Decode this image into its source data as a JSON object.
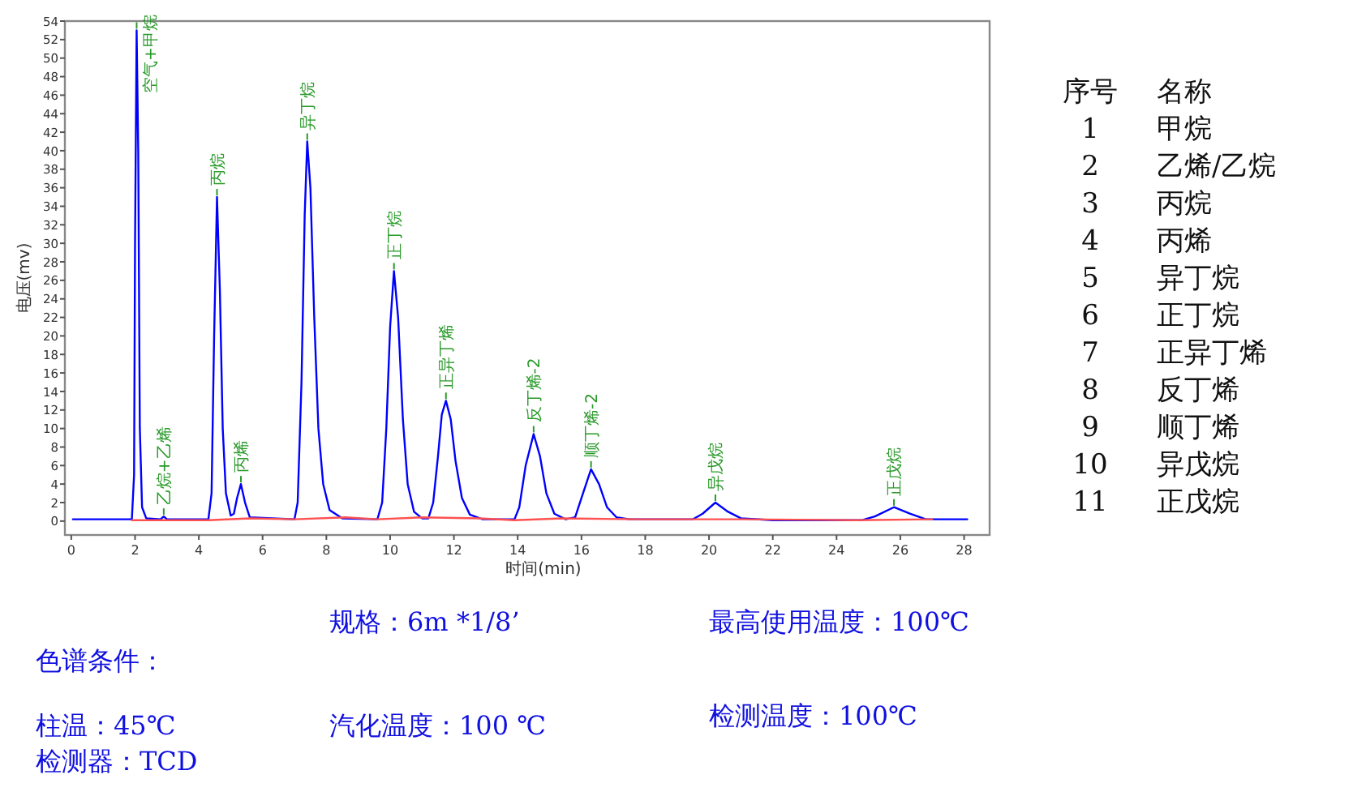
{
  "chart_data": {
    "type": "line",
    "xlabel": "时间(min)",
    "ylabel": "电压(mv)",
    "xlim": [
      -0.2,
      28.8
    ],
    "ylim": [
      -1.5,
      54
    ],
    "xticks": [
      0,
      2,
      4,
      6,
      8,
      10,
      12,
      14,
      16,
      18,
      20,
      22,
      24,
      26,
      28
    ],
    "yticks": [
      0,
      2,
      4,
      6,
      8,
      10,
      12,
      14,
      16,
      18,
      20,
      22,
      24,
      26,
      28,
      30,
      32,
      34,
      36,
      38,
      40,
      42,
      44,
      46,
      48,
      50,
      52,
      54
    ],
    "series": [
      {
        "color": "#0000ff",
        "x": [
          0.05,
          1.9,
          1.97,
          2.0,
          2.05,
          2.1,
          2.15,
          2.22,
          2.35,
          2.8,
          2.9,
          3.0,
          4.3,
          4.4,
          4.48,
          4.57,
          4.66,
          4.75,
          4.85,
          5.0,
          5.1,
          5.2,
          5.32,
          5.45,
          5.6,
          7.0,
          7.1,
          7.22,
          7.32,
          7.4,
          7.5,
          7.62,
          7.75,
          7.9,
          8.1,
          8.5,
          9.6,
          9.75,
          9.88,
          10.0,
          10.12,
          10.25,
          10.4,
          10.55,
          10.75,
          11.0,
          11.2,
          11.35,
          11.5,
          11.62,
          11.75,
          11.9,
          12.05,
          12.25,
          12.5,
          12.9,
          13.9,
          14.05,
          14.25,
          14.5,
          14.7,
          14.9,
          15.15,
          15.5,
          15.8,
          16.0,
          16.3,
          16.55,
          16.8,
          17.1,
          17.5,
          19.5,
          19.8,
          20.2,
          20.6,
          21.0,
          22.0,
          24.8,
          25.2,
          25.8,
          26.3,
          26.8,
          28.1
        ],
        "values": [
          0.2,
          0.2,
          5,
          30,
          53,
          40,
          10,
          1.5,
          0.3,
          0.2,
          0.5,
          0.2,
          0.2,
          3,
          20,
          35,
          25,
          10,
          3,
          0.6,
          0.8,
          2.5,
          4,
          2,
          0.4,
          0.2,
          2,
          15,
          33,
          41,
          36,
          22,
          10,
          4,
          1.2,
          0.3,
          0.2,
          2,
          10,
          21,
          27,
          22,
          11,
          4,
          1,
          0.3,
          0.3,
          2,
          7,
          11.5,
          13,
          11,
          6.5,
          2.5,
          0.7,
          0.2,
          0.2,
          1.5,
          6,
          9.4,
          7,
          3,
          0.8,
          0.2,
          0.4,
          2.5,
          5.6,
          4,
          1.5,
          0.4,
          0.2,
          0.2,
          0.8,
          2,
          1.0,
          0.3,
          0.1,
          0.1,
          0.5,
          1.5,
          0.8,
          0.2,
          0.2
        ]
      },
      {
        "color": "#ff5050",
        "x": [
          1.9,
          4.3,
          5.6,
          7.0,
          8.6,
          9.6,
          11.0,
          12.8,
          13.9,
          15.4,
          17.7,
          19.4,
          21.0,
          24.6,
          27.0
        ],
        "values": [
          0.1,
          0.1,
          0.3,
          0.2,
          0.4,
          0.2,
          0.4,
          0.3,
          0.1,
          0.3,
          0.2,
          0.2,
          0.2,
          0.1,
          0.2
        ]
      }
    ],
    "annotations": [
      {
        "text": "空气+甲烷",
        "x": 2.05,
        "y": 53
      },
      {
        "text": "乙烷+乙烯",
        "x": 2.9,
        "y": 0.5
      },
      {
        "text": "丙烷",
        "x": 4.57,
        "y": 35
      },
      {
        "text": "丙烯",
        "x": 5.32,
        "y": 4
      },
      {
        "text": "异丁烷",
        "x": 7.4,
        "y": 41
      },
      {
        "text": "正丁烷",
        "x": 10.12,
        "y": 27
      },
      {
        "text": "正异丁烯",
        "x": 11.75,
        "y": 13
      },
      {
        "text": "反丁烯-2",
        "x": 14.5,
        "y": 9.4
      },
      {
        "text": "顺丁烯-2",
        "x": 16.3,
        "y": 5.6
      },
      {
        "text": "异戊烷",
        "x": 20.2,
        "y": 2
      },
      {
        "text": "正戊烷",
        "x": 25.8,
        "y": 1.5
      },
      "序号",
      "名称",
      "1",
      "甲烷",
      "2",
      "乙烯/乙烷",
      "3",
      "丙烷",
      "4",
      "丙烯",
      "5",
      "异丁烷",
      "6",
      "正丁烷",
      "7",
      "正异丁烯",
      "8",
      "反丁烯",
      "9",
      "顺丁烯",
      "10",
      "异戊烷",
      "11",
      "正戊烷",
      "规格：6m *1/8’",
      "最高使用温度：100℃",
      "色谱条件：",
      "柱温：45℃",
      "汽化温度：100 ℃",
      "检测温度：100℃",
      "检测器：TCD"
    ]
  }
}
